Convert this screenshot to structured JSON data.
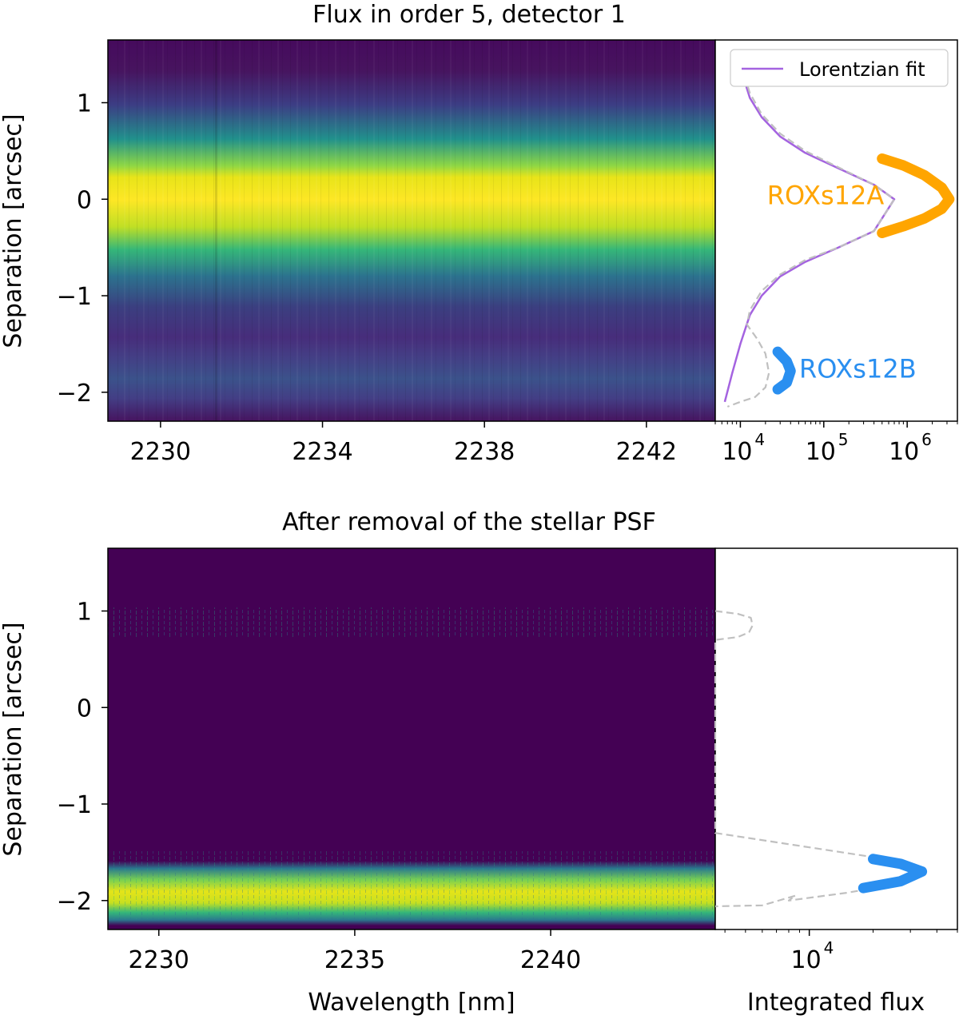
{
  "chart_data": [
    {
      "type": "heatmap",
      "title": "Flux in order 5, detector 1",
      "xlabel": "",
      "ylabel": "Separation [arcsec]",
      "xlim": [
        2228.7,
        2243.7
      ],
      "ylim": [
        -2.3,
        1.65
      ],
      "x_ticks": [
        2230,
        2234,
        2238,
        2242
      ],
      "x_tick_labels": [
        "2230",
        "2234",
        "2238",
        "2242"
      ],
      "y_ticks": [
        1,
        0,
        -1,
        -2
      ],
      "y_tick_labels": [
        "1",
        "0",
        "−1",
        "−2"
      ],
      "colormap": "viridis",
      "profile": [
        {
          "y": 0.0,
          "intensity": 1.0
        },
        {
          "y": -1.8,
          "intensity": 0.3
        }
      ]
    },
    {
      "type": "line",
      "xscale": "log",
      "xlim": [
        5000,
        4000000
      ],
      "ylim": [
        -2.3,
        1.65
      ],
      "x_ticks": [
        10000,
        100000,
        1000000
      ],
      "x_tick_labels": [
        "10",
        "10",
        "10"
      ],
      "x_tick_exponents": [
        "4",
        "5",
        "6"
      ],
      "legend": {
        "label": "Lorentzian fit",
        "position": "top-right"
      },
      "series": [
        {
          "name": "Lorentzian fit",
          "color": "#a463e0",
          "x": [
            10000,
            10200,
            11000,
            13000,
            18000,
            30000,
            60000,
            150000,
            400000,
            700000,
            400000,
            150000,
            60000,
            30000,
            18000,
            13000,
            10000,
            8000,
            6500
          ],
          "y": [
            1.5,
            1.4,
            1.25,
            1.05,
            0.85,
            0.65,
            0.48,
            0.32,
            0.15,
            0.0,
            -0.33,
            -0.5,
            -0.65,
            -0.8,
            -1.0,
            -1.2,
            -1.5,
            -1.8,
            -2.1
          ]
        },
        {
          "name": "",
          "color": "#c0c0c0",
          "style": "dashed",
          "x": [
            9500,
            11000,
            13000,
            18000,
            30000,
            60000,
            150000,
            400000,
            700000,
            400000,
            150000,
            60000,
            30000,
            18000,
            13000,
            12000,
            16000,
            20000,
            22000,
            20000,
            15000,
            10000,
            7000
          ],
          "y": [
            1.5,
            1.3,
            1.1,
            0.88,
            0.68,
            0.5,
            0.33,
            0.15,
            0.0,
            -0.33,
            -0.5,
            -0.63,
            -0.78,
            -0.95,
            -1.15,
            -1.3,
            -1.45,
            -1.6,
            -1.8,
            -1.95,
            -2.05,
            -2.1,
            -2.15
          ]
        }
      ],
      "highlights": [
        {
          "label": "ROXs12A",
          "color": "#ffa500",
          "x": [
            500000,
            900000,
            1600000,
            2600000,
            3200000,
            2600000,
            1600000,
            900000,
            500000
          ],
          "y": [
            0.42,
            0.35,
            0.25,
            0.12,
            0.0,
            -0.1,
            -0.2,
            -0.28,
            -0.35
          ]
        },
        {
          "label": "ROXs12B",
          "color": "#2a8ff0",
          "x": [
            28000,
            36000,
            40000,
            36000,
            28000
          ],
          "y": [
            -1.58,
            -1.68,
            -1.78,
            -1.9,
            -1.97
          ]
        }
      ]
    },
    {
      "type": "heatmap",
      "title": "After removal of the stellar PSF",
      "xlabel": "Wavelength [nm]",
      "ylabel": "Separation [arcsec]",
      "xlim": [
        2228.7,
        2244.2
      ],
      "ylim": [
        -2.3,
        1.65
      ],
      "x_ticks": [
        2230,
        2235,
        2240
      ],
      "x_tick_labels": [
        "2230",
        "2235",
        "2240"
      ],
      "y_ticks": [
        1,
        0,
        -1,
        -2
      ],
      "y_tick_labels": [
        "1",
        "0",
        "−1",
        "−2"
      ],
      "colormap": "viridis",
      "profile": [
        {
          "y": -1.78,
          "intensity": 1.0
        },
        {
          "y": 0.95,
          "intensity": 0.3
        }
      ]
    },
    {
      "type": "line",
      "xscale": "log",
      "xlabel": "Integrated flux",
      "xlim": [
        3600,
        50000
      ],
      "ylim": [
        -2.3,
        1.65
      ],
      "x_ticks": [
        10000
      ],
      "x_tick_labels": [
        "10"
      ],
      "x_tick_exponents": [
        "4"
      ],
      "series": [
        {
          "name": "",
          "color": "#c0c0c0",
          "style": "dashed",
          "x": [
            3600,
            4600,
            5300,
            5400,
            5200,
            4600,
            3600,
            3600,
            20000,
            30000,
            34000,
            28000,
            15000,
            8000,
            8600,
            6000,
            3600
          ],
          "y": [
            1.0,
            0.97,
            0.93,
            0.85,
            0.78,
            0.73,
            0.7,
            -1.3,
            -1.55,
            -1.62,
            -1.7,
            -1.82,
            -1.92,
            -2.0,
            -1.95,
            -2.05,
            -2.06
          ]
        }
      ],
      "highlights": [
        {
          "label": "",
          "color": "#2a8ff0",
          "x": [
            20000,
            27000,
            34000,
            27000,
            18000
          ],
          "y": [
            -1.57,
            -1.62,
            -1.7,
            -1.8,
            -1.87
          ]
        }
      ]
    }
  ]
}
